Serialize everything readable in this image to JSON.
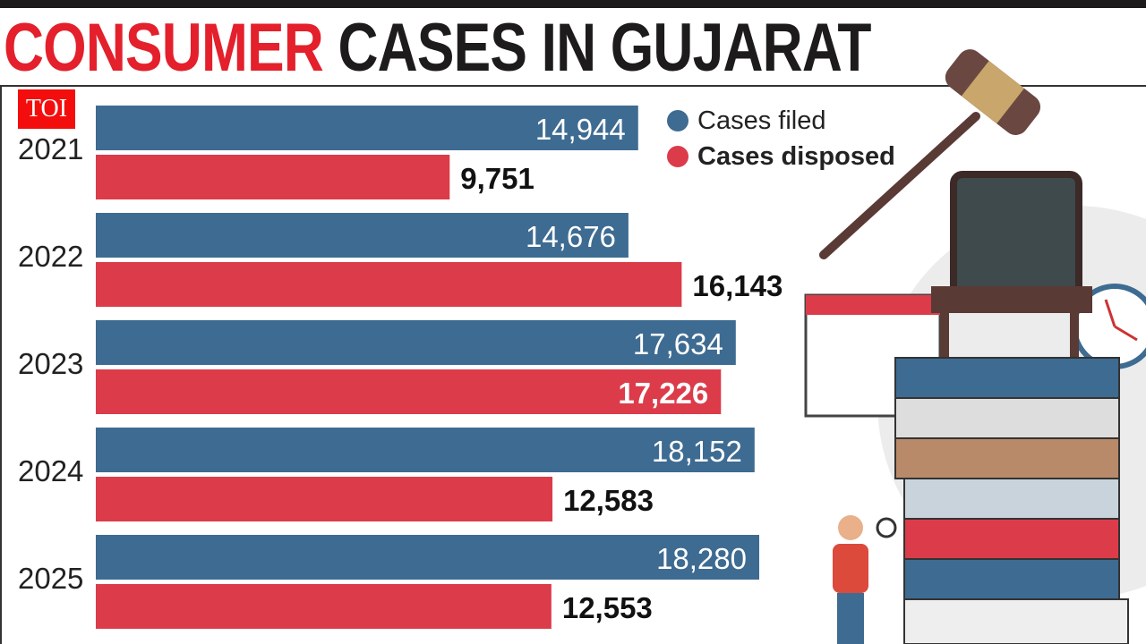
{
  "header": {
    "title_red": "CONSUMER",
    "title_black": "CASES IN GUJARAT",
    "logo": "TOI"
  },
  "colors": {
    "filed": "#3e6b91",
    "disposed": "#dc3b4a",
    "title_red": "#e3202b"
  },
  "chart_data": {
    "type": "bar",
    "orientation": "horizontal",
    "title": "CONSUMER CASES IN GUJARAT",
    "categories": [
      "2021",
      "2022",
      "2023",
      "2024",
      "2025"
    ],
    "series": [
      {
        "name": "Cases filed",
        "values": [
          14944,
          14676,
          17634,
          18152,
          18280
        ],
        "labels": [
          "14,944",
          "14,676",
          "17,634",
          "18,152",
          "18,280"
        ]
      },
      {
        "name": "Cases disposed",
        "values": [
          9751,
          16143,
          17226,
          12583,
          12553
        ],
        "labels": [
          "9,751",
          "16,143",
          "17,226",
          "12,583",
          "12,553"
        ]
      }
    ],
    "xlim": [
      0,
      18280
    ],
    "grid": false,
    "legend_placement": "top-right"
  }
}
